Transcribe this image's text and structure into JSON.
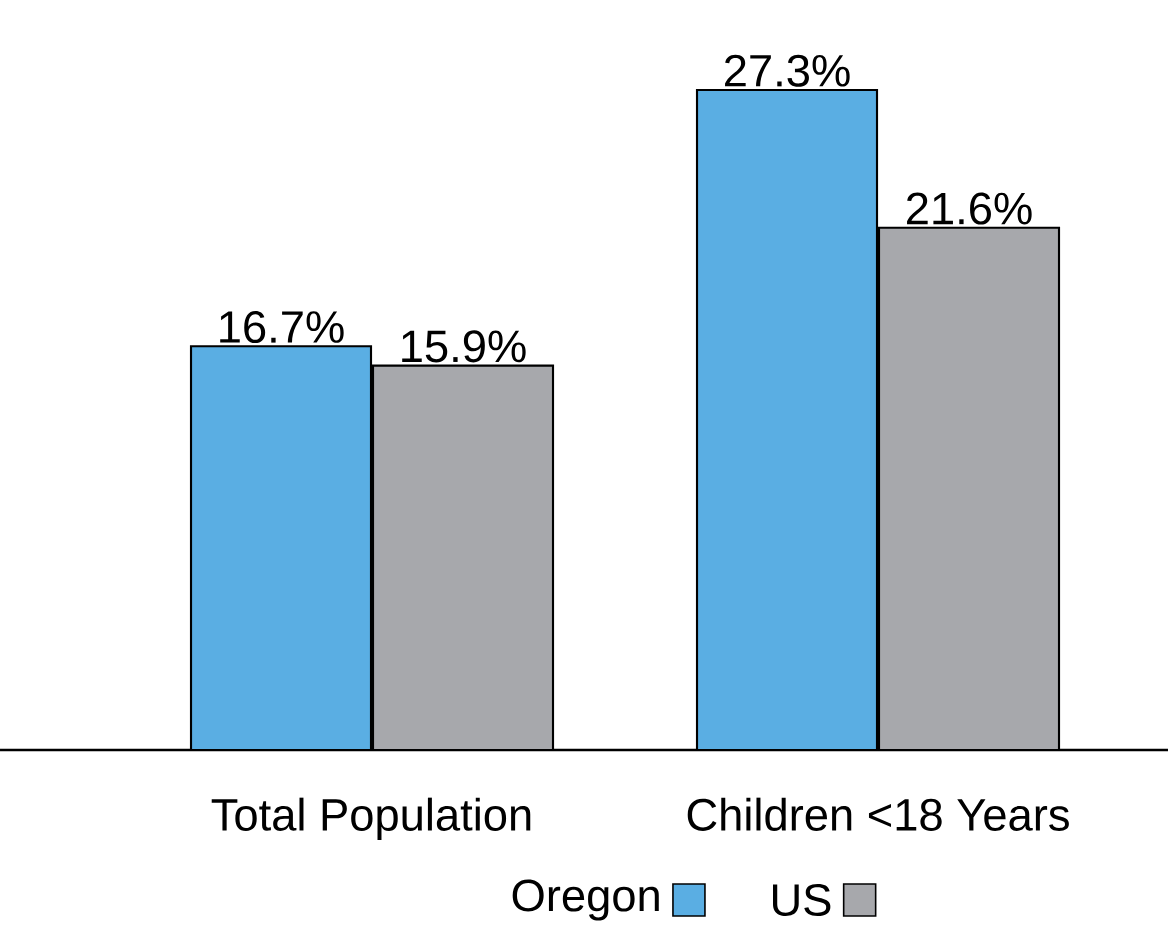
{
  "chart_data": {
    "type": "bar",
    "categories": [
      "Total Population",
      "Children <18 Years"
    ],
    "series": [
      {
        "name": "Oregon",
        "color": "#5aaee3",
        "values": [
          16.7,
          27.3
        ],
        "value_labels": [
          "16.7%",
          "27.3%"
        ]
      },
      {
        "name": "US",
        "color": "#a7a8ac",
        "values": [
          15.9,
          21.6
        ],
        "value_labels": [
          "15.9%",
          "21.6%"
        ]
      }
    ],
    "legend": "bottom"
  }
}
